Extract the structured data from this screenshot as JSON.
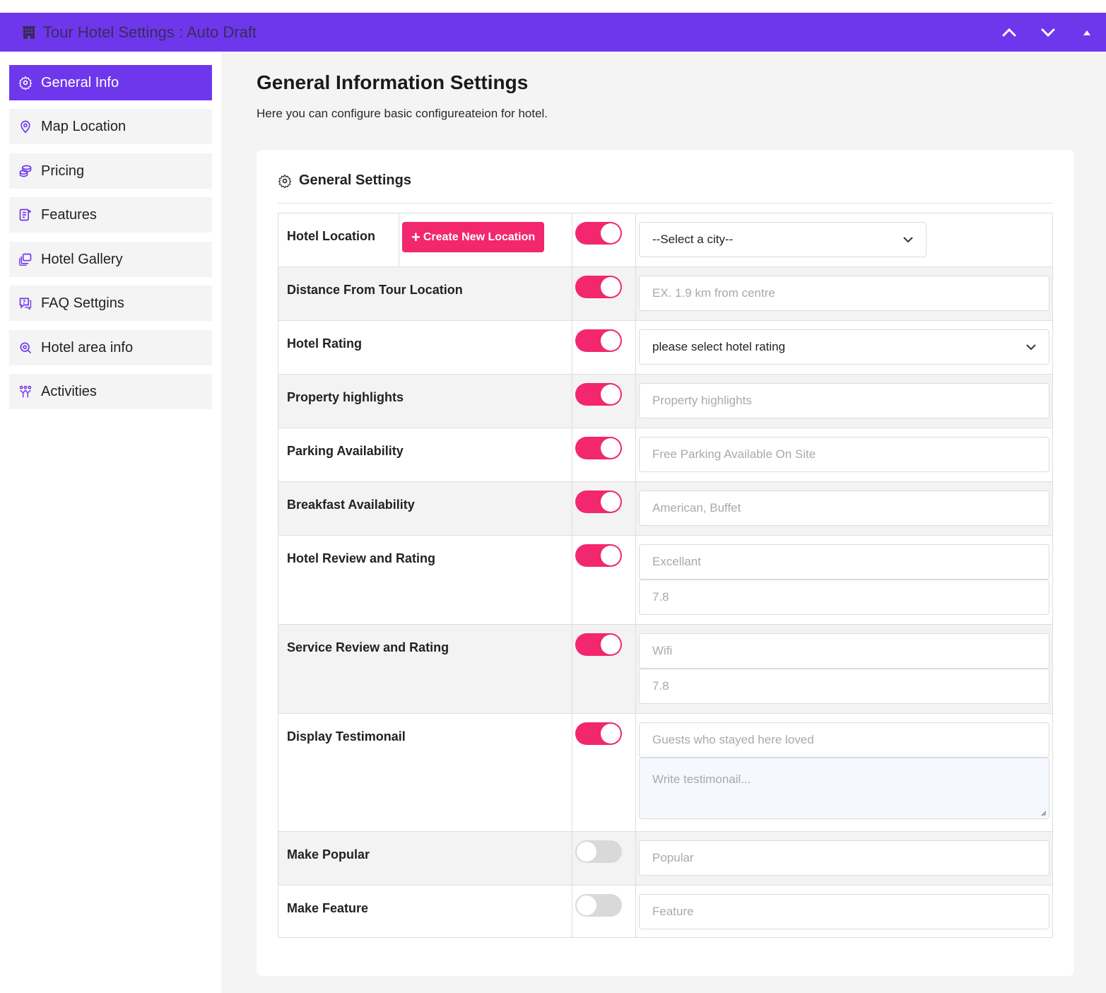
{
  "window": {
    "title": "Tour Hotel Settings : Auto Draft",
    "icon": "hotel-building-icon",
    "accent": "#6f37ec",
    "controls": [
      "chevron-up-icon",
      "chevron-down-icon",
      "caret-up-icon"
    ]
  },
  "sidebar": {
    "items": [
      {
        "label": "General Info",
        "icon": "gear-icon",
        "active": true
      },
      {
        "label": "Map Location",
        "icon": "map-pin-icon",
        "active": false
      },
      {
        "label": "Pricing",
        "icon": "coins-icon",
        "active": false
      },
      {
        "label": "Features",
        "icon": "feature-list-icon",
        "active": false
      },
      {
        "label": "Hotel Gallery",
        "icon": "gallery-icon",
        "active": false
      },
      {
        "label": "FAQ Settgins",
        "icon": "faq-chat-icon",
        "active": false
      },
      {
        "label": "Hotel area info",
        "icon": "area-search-icon",
        "active": false
      },
      {
        "label": "Activities",
        "icon": "activities-icon",
        "active": false
      }
    ]
  },
  "main": {
    "title": "General Information Settings",
    "description": "Here you can configure basic configureateion for hotel."
  },
  "card": {
    "title": "General Settings",
    "toggle_on_color": "#f2276d",
    "rows": {
      "hotel_location": {
        "label": "Hotel Location",
        "button": "Create New Location",
        "toggle": true,
        "select": "--Select a city--"
      },
      "distance": {
        "label": "Distance From Tour Location",
        "toggle": true,
        "placeholder": "EX. 1.9 km from centre"
      },
      "hotel_rating": {
        "label": "Hotel Rating",
        "toggle": true,
        "select": "please select hotel rating"
      },
      "property_highlights": {
        "label": "Property highlights",
        "toggle": true,
        "placeholder": "Property highlights"
      },
      "parking": {
        "label": "Parking Availability",
        "toggle": true,
        "placeholder": "Free Parking Available On Site"
      },
      "breakfast": {
        "label": "Breakfast Availability",
        "toggle": true,
        "placeholder": "American, Buffet"
      },
      "hotel_review": {
        "label": "Hotel Review and Rating",
        "toggle": true,
        "placeholder_1": "Excellant",
        "placeholder_2": "7.8"
      },
      "service_review": {
        "label": "Service Review and Rating",
        "toggle": true,
        "placeholder_1": "Wifi",
        "placeholder_2": "7.8"
      },
      "testimonial": {
        "label": "Display Testimonail",
        "toggle": true,
        "placeholder": "Guests who stayed here loved",
        "textarea_placeholder": "Write testimonail..."
      },
      "popular": {
        "label": "Make Popular",
        "toggle": false,
        "placeholder": "Popular"
      },
      "feature": {
        "label": "Make Feature",
        "toggle": false,
        "placeholder": "Feature"
      }
    }
  }
}
